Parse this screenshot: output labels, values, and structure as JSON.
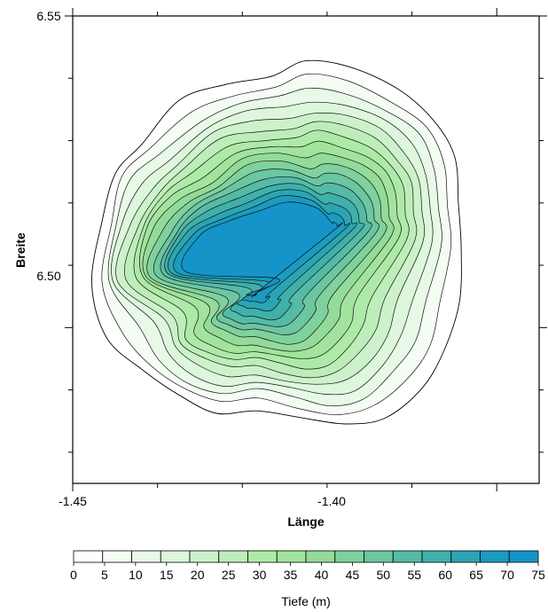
{
  "chart_data": {
    "type": "heatmap",
    "subtype": "bathymetric-contour-map",
    "xlabel": "Länge",
    "ylabel": "Breite",
    "xlim": [
      -1.45,
      -1.395
    ],
    "ylim": [
      6.475,
      6.55
    ],
    "x_ticks": [
      "-1.45",
      "-1.40"
    ],
    "y_ticks": [
      "6.55",
      "6.50"
    ],
    "colorbar": {
      "label": "Tiefe (m)",
      "range": [
        0,
        75
      ],
      "ticks": [
        "0",
        "5",
        "10",
        "15",
        "20",
        "25",
        "30",
        "35",
        "40",
        "45",
        "50",
        "55",
        "60",
        "65",
        "70",
        "75"
      ],
      "colors": [
        "#ffffff",
        "#f4fcf4",
        "#e9f9e8",
        "#ddf6dc",
        "#cdf2cb",
        "#bdeeb9",
        "#aeeaa7",
        "#a2e49d",
        "#93db99",
        "#7fd19d",
        "#6bc6a1",
        "#55bba6",
        "#3fb0aa",
        "#2ba5b3",
        "#1b9bc0",
        "#1494c8"
      ]
    },
    "lake_center": [
      -1.4175,
      6.5115
    ],
    "max_depth": 75,
    "grid": false
  }
}
